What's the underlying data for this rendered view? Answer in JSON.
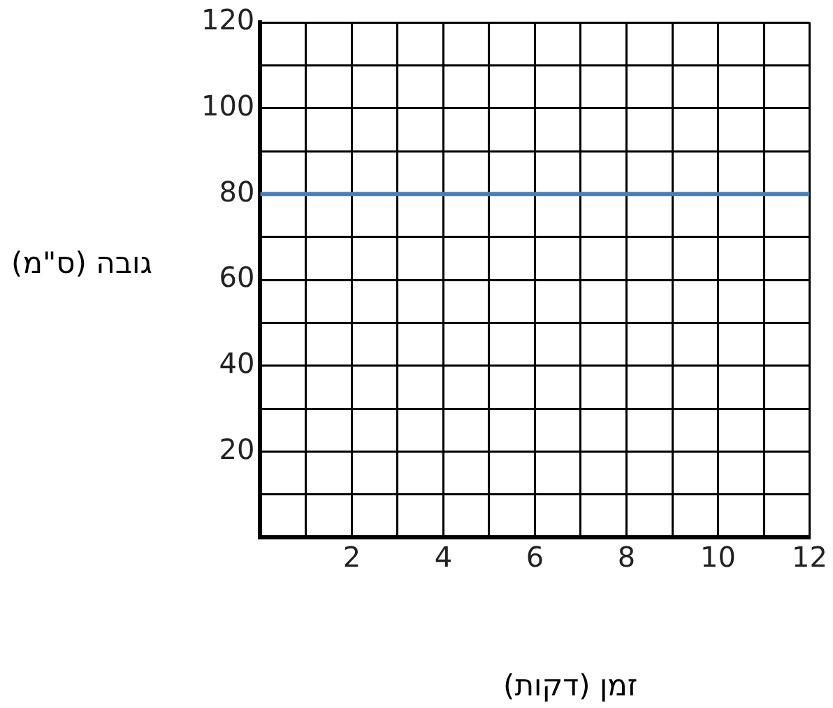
{
  "chart_data": {
    "type": "line",
    "xlabel": "זמן (דקות)",
    "ylabel": "גובה (ס\"מ)",
    "x": [
      0,
      12
    ],
    "series": [
      {
        "color": "#4a7ebb",
        "values": [
          80,
          80
        ]
      }
    ],
    "xlim": [
      0,
      12
    ],
    "xticks": [
      {
        "value": 0,
        "label": null
      },
      {
        "value": 1,
        "label": null
      },
      2,
      {
        "value": 3,
        "label": null
      },
      4,
      {
        "value": 5,
        "label": null
      },
      6,
      {
        "value": 7,
        "label": null
      },
      8,
      {
        "value": 9,
        "label": null
      },
      10,
      {
        "value": 11,
        "label": null
      },
      12
    ],
    "ylim": [
      0,
      120
    ],
    "yticks": [
      {
        "value": 0,
        "label": null
      },
      {
        "value": 10,
        "label": null
      },
      20,
      {
        "value": 30,
        "label": null
      },
      40,
      {
        "value": 50,
        "label": null
      },
      60,
      {
        "value": 70,
        "label": null
      },
      80,
      {
        "value": 90,
        "label": null
      },
      100,
      {
        "value": 110,
        "label": null
      },
      120
    ],
    "grid": true,
    "marker": "none",
    "line_style": "solid",
    "legend": false
  }
}
